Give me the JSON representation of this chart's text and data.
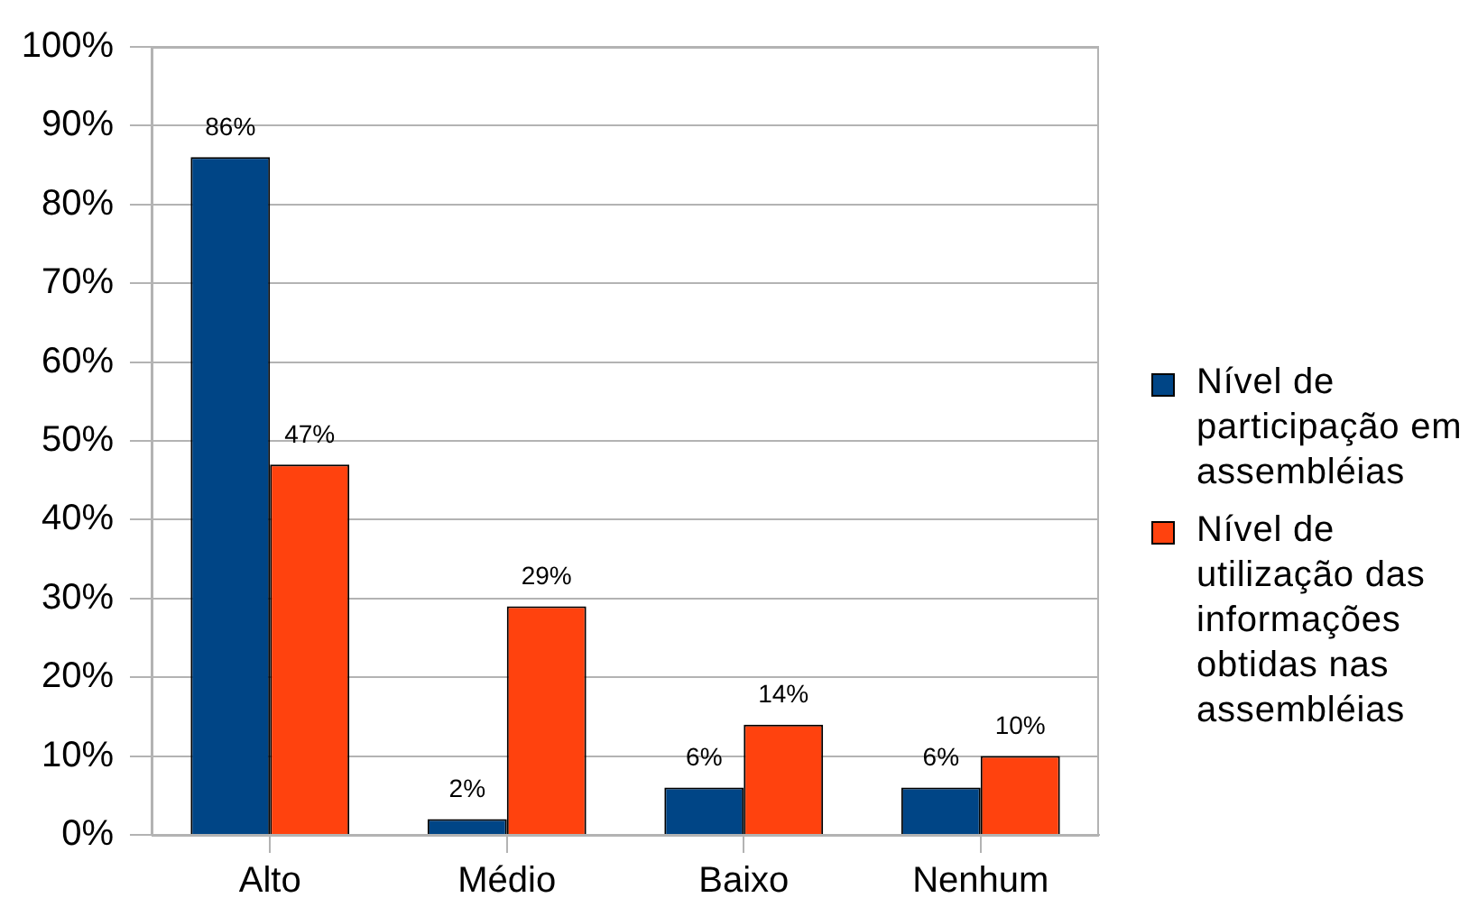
{
  "chart_data": {
    "type": "bar",
    "categories": [
      "Alto",
      "Médio",
      "Baixo",
      "Nenhum"
    ],
    "series": [
      {
        "name": "Nível de participação em assembléias",
        "color": "#004586",
        "values": [
          86,
          2,
          6,
          6
        ],
        "value_labels": [
          "86%",
          "2%",
          "6%",
          "6%"
        ]
      },
      {
        "name": "Nível de utilização das informações obtidas nas assembléias",
        "color": "#ff420e",
        "values": [
          47,
          29,
          14,
          10
        ],
        "value_labels": [
          "47%",
          "29%",
          "14%",
          "10%"
        ]
      }
    ],
    "ylim": [
      0,
      100
    ],
    "yticks": [
      {
        "value": 0,
        "label": "0%"
      },
      {
        "value": 10,
        "label": "10%"
      },
      {
        "value": 20,
        "label": "20%"
      },
      {
        "value": 30,
        "label": "30%"
      },
      {
        "value": 40,
        "label": "40%"
      },
      {
        "value": 50,
        "label": "50%"
      },
      {
        "value": 60,
        "label": "60%"
      },
      {
        "value": 70,
        "label": "70%"
      },
      {
        "value": 80,
        "label": "80%"
      },
      {
        "value": 90,
        "label": "90%"
      },
      {
        "value": 100,
        "label": "100%"
      }
    ],
    "grid": "y",
    "legend": "right"
  }
}
